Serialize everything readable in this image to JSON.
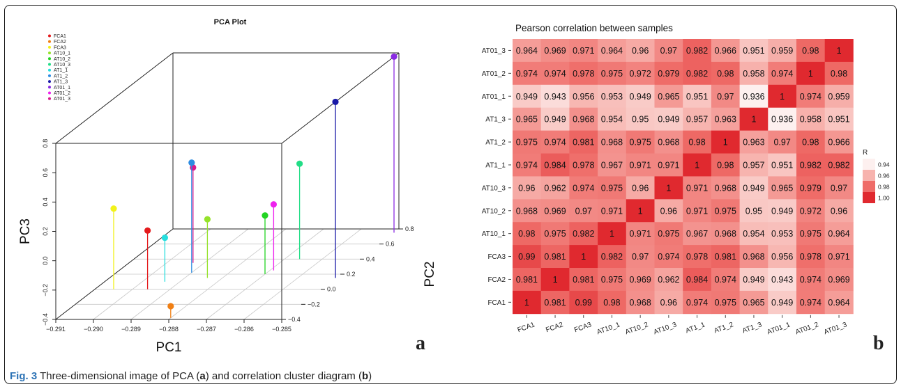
{
  "figure": {
    "caption_label": "Fig. 3",
    "caption_parts": [
      "Three-dimensional image of PCA (",
      "a",
      ") and correlation cluster diagram (",
      "b",
      ")"
    ],
    "panel_a_letter": "a",
    "panel_b_letter": "b"
  },
  "chart_data": [
    {
      "type": "scatter",
      "title": "PCA Plot",
      "xlabel": "PC1",
      "ylabel": "PC2",
      "zlabel": "PC3",
      "xlim": [
        -0.291,
        -0.285
      ],
      "ylim": [
        -0.4,
        0.8
      ],
      "zlim": [
        -0.4,
        0.8
      ],
      "x_ticks": [
        "−0.291",
        "−0.290",
        "−0.289",
        "−0.288",
        "−0.287",
        "−0.286",
        "−0.285"
      ],
      "y_ticks": [
        "−0.4",
        "−0.2",
        "0.0",
        "0.2",
        "0.4",
        "0.6",
        "0.8"
      ],
      "z_ticks": [
        "−0.4",
        "−0.2",
        "0.0",
        "0.2",
        "0.4",
        "0.6",
        "0.8"
      ],
      "legend_position": "top-left",
      "series": [
        {
          "name": "FCA1",
          "color": "#e41a1c",
          "x": -0.2896,
          "y": 0.0,
          "z": 0.0
        },
        {
          "name": "FCA2",
          "color": "#f07f13",
          "x": -0.288,
          "y": -0.38,
          "z": -0.32
        },
        {
          "name": "FCA3",
          "color": "#f2f21a",
          "x": -0.2905,
          "y": 0.0,
          "z": 0.15
        },
        {
          "name": "AT10_1",
          "color": "#95e22a",
          "x": -0.2884,
          "y": 0.15,
          "z": 0.0
        },
        {
          "name": "AT10_2",
          "color": "#22d422",
          "x": -0.287,
          "y": 0.2,
          "z": 0.0
        },
        {
          "name": "AT10_3",
          "color": "#22dd86",
          "x": -0.2866,
          "y": 0.4,
          "z": 0.25
        },
        {
          "name": "AT1_1",
          "color": "#26dede",
          "x": -0.2894,
          "y": 0.1,
          "z": -0.1
        },
        {
          "name": "AT1_2",
          "color": "#2d8ce2",
          "x": -0.289,
          "y": 0.22,
          "z": 0.35
        },
        {
          "name": "AT1_3",
          "color": "#1919a8",
          "x": -0.285,
          "y": 0.15,
          "z": 0.8
        },
        {
          "name": "AT01_1",
          "color": "#8a2be2",
          "x": -0.285,
          "y": 0.75,
          "z": 0.8
        },
        {
          "name": "AT01_2",
          "color": "#ee22ee",
          "x": -0.2869,
          "y": 0.25,
          "z": 0.05
        },
        {
          "name": "AT01_3",
          "color": "#d81b8c",
          "x": -0.2893,
          "y": 0.35,
          "z": 0.25
        }
      ]
    },
    {
      "type": "heatmap",
      "title": "Pearson correlation between samples",
      "samples": [
        "FCA1",
        "FCA2",
        "FCA3",
        "AT10_1",
        "AT10_2",
        "AT10_3",
        "AT1_1",
        "AT1_2",
        "AT1_3",
        "AT01_1",
        "AT01_2",
        "AT01_3"
      ],
      "row_order_top_to_bottom": [
        "AT01_3",
        "AT01_2",
        "AT01_1",
        "AT1_3",
        "AT1_2",
        "AT1_1",
        "AT10_3",
        "AT10_2",
        "AT10_1",
        "FCA3",
        "FCA2",
        "FCA1"
      ],
      "rows": [
        [
          "0.964",
          "0.969",
          "0.971",
          "0.964",
          "0.96",
          "0.97",
          "0.982",
          "0.966",
          "0.951",
          "0.959",
          "0.98",
          "1"
        ],
        [
          "0.974",
          "0.974",
          "0.978",
          "0.975",
          "0.972",
          "0.979",
          "0.982",
          "0.98",
          "0.958",
          "0.974",
          "1",
          "0.98"
        ],
        [
          "0.949",
          "0.943",
          "0.956",
          "0.953",
          "0.949",
          "0.965",
          "0.951",
          "0.97",
          "0.936",
          "1",
          "0.974",
          "0.959"
        ],
        [
          "0.965",
          "0.949",
          "0.968",
          "0.954",
          "0.95",
          "0.949",
          "0.957",
          "0.963",
          "1",
          "0.936",
          "0.958",
          "0.951"
        ],
        [
          "0.975",
          "0.974",
          "0.981",
          "0.968",
          "0.975",
          "0.968",
          "0.98",
          "1",
          "0.963",
          "0.97",
          "0.98",
          "0.966"
        ],
        [
          "0.974",
          "0.984",
          "0.978",
          "0.967",
          "0.971",
          "0.971",
          "1",
          "0.98",
          "0.957",
          "0.951",
          "0.982",
          "0.982"
        ],
        [
          "0.96",
          "0.962",
          "0.974",
          "0.975",
          "0.96",
          "1",
          "0.971",
          "0.968",
          "0.949",
          "0.965",
          "0.979",
          "0.97"
        ],
        [
          "0.968",
          "0.969",
          "0.97",
          "0.971",
          "1",
          "0.96",
          "0.971",
          "0.975",
          "0.95",
          "0.949",
          "0.972",
          "0.96"
        ],
        [
          "0.98",
          "0.975",
          "0.982",
          "1",
          "0.971",
          "0.975",
          "0.967",
          "0.968",
          "0.954",
          "0.953",
          "0.975",
          "0.964"
        ],
        [
          "0.99",
          "0.981",
          "1",
          "0.982",
          "0.97",
          "0.974",
          "0.978",
          "0.981",
          "0.968",
          "0.956",
          "0.978",
          "0.971"
        ],
        [
          "0.981",
          "1",
          "0.981",
          "0.975",
          "0.969",
          "0.962",
          "0.984",
          "0.974",
          "0.949",
          "0.943",
          "0.974",
          "0.969"
        ],
        [
          "1",
          "0.981",
          "0.99",
          "0.98",
          "0.968",
          "0.96",
          "0.974",
          "0.975",
          "0.965",
          "0.949",
          "0.974",
          "0.964"
        ]
      ],
      "legend_title": "R",
      "legend_labels": [
        "0.94",
        "0.96",
        "0.98",
        "1.00"
      ],
      "legend_colors": [
        "#fdf0ef",
        "#f7b3ae",
        "#ef6d69",
        "#e0292f"
      ],
      "scale_min": 0.936,
      "scale_max": 1.0
    }
  ]
}
